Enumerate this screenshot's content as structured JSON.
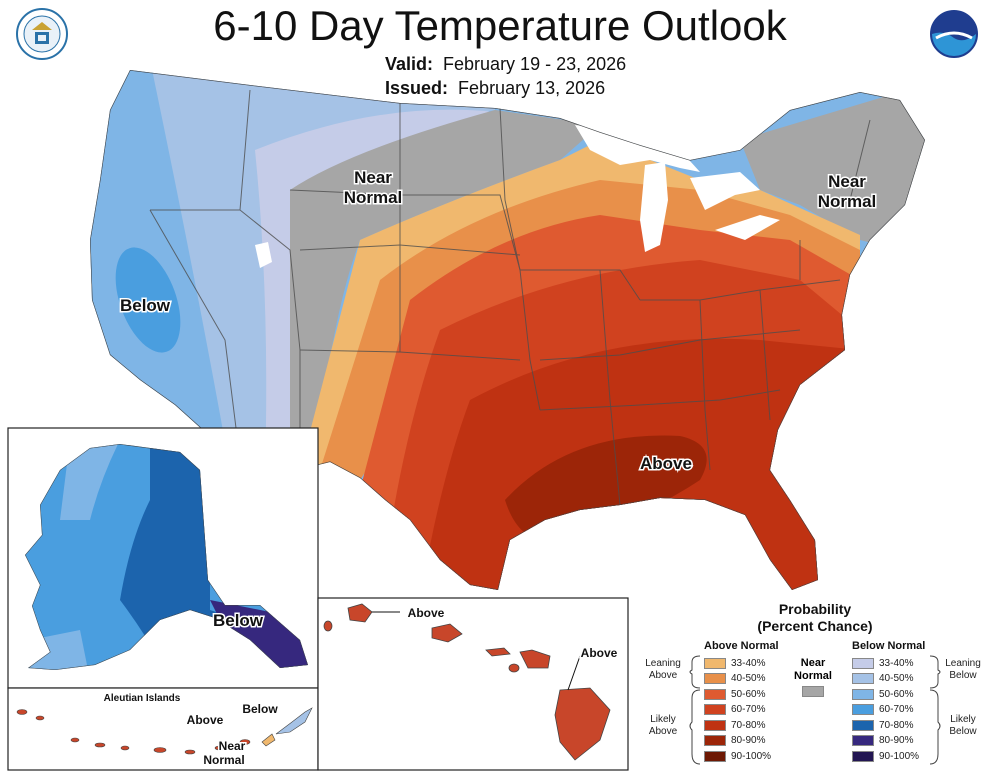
{
  "title": "6-10 Day Temperature Outlook",
  "valid_label": "Valid:",
  "valid_value": "February 19 - 23, 2026",
  "issued_label": "Issued:",
  "issued_value": "February 13, 2026",
  "logos": {
    "left": "department-of-commerce-seal",
    "right": "noaa-logo"
  },
  "map_labels": {
    "below_conus": "Below",
    "near_west_1": "Near",
    "near_west_2": "Normal",
    "near_ne_1": "Near",
    "near_ne_2": "Normal",
    "above_conus": "Above",
    "alaska_below": "Below",
    "aleutian_title": "Aleutian Islands",
    "aleutian_below": "Below",
    "aleutian_above": "Above",
    "aleutian_near_1": "Near",
    "aleutian_near_2": "Normal",
    "hawaii_above_1": "Above",
    "hawaii_above_2": "Above"
  },
  "legend": {
    "title_1": "Probability",
    "title_2": "(Percent Chance)",
    "above_header": "Above Normal",
    "below_header": "Below Normal",
    "near_1": "Near",
    "near_2": "Normal",
    "near_color": "#a6a6a6",
    "above_rows": [
      {
        "label": "33-40%",
        "color": "#f0b86e"
      },
      {
        "label": "40-50%",
        "color": "#e8904a"
      },
      {
        "label": "50-60%",
        "color": "#df5a30"
      },
      {
        "label": "60-70%",
        "color": "#d0421f"
      },
      {
        "label": "70-80%",
        "color": "#bf3212"
      },
      {
        "label": "80-90%",
        "color": "#9c2508"
      },
      {
        "label": "90-100%",
        "color": "#6e1904"
      }
    ],
    "below_rows": [
      {
        "label": "33-40%",
        "color": "#c5cce8"
      },
      {
        "label": "40-50%",
        "color": "#a5c2e6"
      },
      {
        "label": "50-60%",
        "color": "#7fb5e6"
      },
      {
        "label": "60-70%",
        "color": "#4a9edf"
      },
      {
        "label": "70-80%",
        "color": "#1c64ad"
      },
      {
        "label": "80-90%",
        "color": "#36287e"
      },
      {
        "label": "90-100%",
        "color": "#221652"
      }
    ],
    "leaning_above_1": "Leaning",
    "leaning_above_2": "Above",
    "likely_above_1": "Likely",
    "likely_above_2": "Above",
    "leaning_below_1": "Leaning",
    "leaning_below_2": "Below",
    "likely_below_1": "Likely",
    "likely_below_2": "Below"
  }
}
